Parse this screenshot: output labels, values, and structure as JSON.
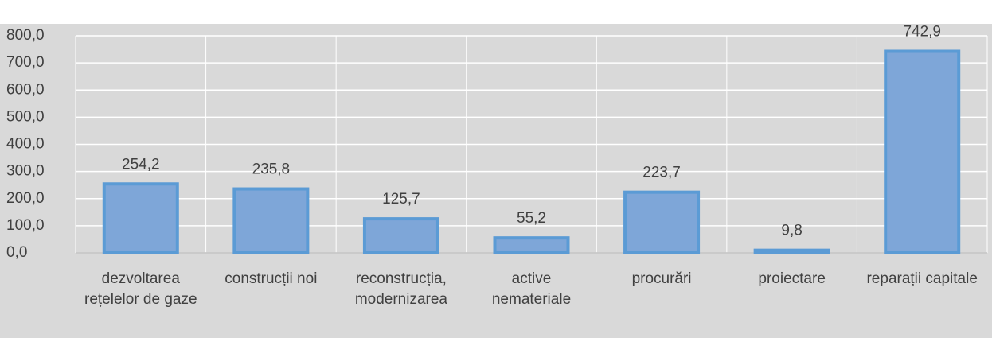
{
  "chart_data": {
    "type": "bar",
    "categories": [
      "dezvoltarea rețelelor de gaze",
      "construcții noi",
      "reconstrucția, modernizarea",
      "active nemateriale",
      "procurări",
      "proiectare",
      "reparații capitale"
    ],
    "values": [
      254.2,
      235.8,
      125.7,
      55.2,
      223.7,
      9.8,
      742.9
    ],
    "value_labels": [
      "254,2",
      "235,8",
      "125,7",
      "55,2",
      "223,7",
      "9,8",
      "742,9"
    ],
    "color": "#7ea6d8",
    "ylim": [
      0,
      800
    ],
    "yticks": [
      {
        "value": 0,
        "label": "0,0"
      },
      {
        "value": 100,
        "label": "100,0"
      },
      {
        "value": 200,
        "label": "200,0"
      },
      {
        "value": 300,
        "label": "300,0"
      },
      {
        "value": 400,
        "label": "400,0"
      },
      {
        "value": 500,
        "label": "500,0"
      },
      {
        "value": 600,
        "label": "600,0"
      },
      {
        "value": 700,
        "label": "700,0"
      },
      {
        "value": 800,
        "label": "800,0"
      }
    ],
    "grid": true
  }
}
